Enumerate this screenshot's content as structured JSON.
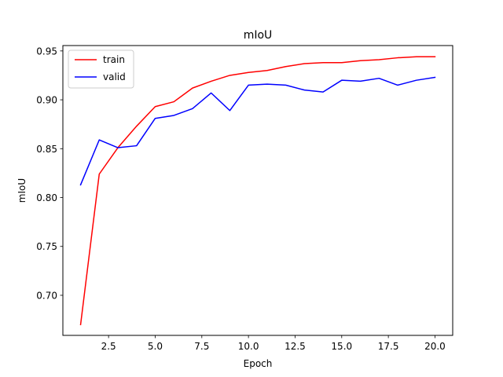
{
  "chart_data": {
    "type": "line",
    "title": "mIoU",
    "xlabel": "Epoch",
    "ylabel": "mIoU",
    "xlim": [
      0.05,
      20.95
    ],
    "ylim": [
      0.659,
      0.9555
    ],
    "x_ticks": [
      2.5,
      5.0,
      7.5,
      10.0,
      12.5,
      15.0,
      17.5,
      20.0
    ],
    "x_tick_labels": [
      "2.5",
      "5.0",
      "7.5",
      "10.0",
      "12.5",
      "15.0",
      "17.5",
      "20.0"
    ],
    "y_ticks": [
      0.7,
      0.75,
      0.8,
      0.85,
      0.9,
      0.95
    ],
    "y_tick_labels": [
      "0.70",
      "0.75",
      "0.80",
      "0.85",
      "0.90",
      "0.95"
    ],
    "grid": false,
    "legend_position": "upper-left",
    "x": [
      1,
      2,
      3,
      4,
      5,
      6,
      7,
      8,
      9,
      10,
      11,
      12,
      13,
      14,
      15,
      16,
      17,
      18,
      19,
      20
    ],
    "series": [
      {
        "name": "train",
        "color": "#ff0000",
        "values": [
          0.67,
          0.824,
          0.851,
          0.873,
          0.893,
          0.898,
          0.912,
          0.919,
          0.925,
          0.928,
          0.93,
          0.934,
          0.937,
          0.938,
          0.938,
          0.94,
          0.941,
          0.943,
          0.944,
          0.944
        ]
      },
      {
        "name": "valid",
        "color": "#0000ff",
        "values": [
          0.813,
          0.859,
          0.851,
          0.853,
          0.881,
          0.884,
          0.891,
          0.907,
          0.889,
          0.915,
          0.916,
          0.915,
          0.91,
          0.908,
          0.92,
          0.919,
          0.922,
          0.915,
          0.92,
          0.923
        ]
      }
    ]
  }
}
